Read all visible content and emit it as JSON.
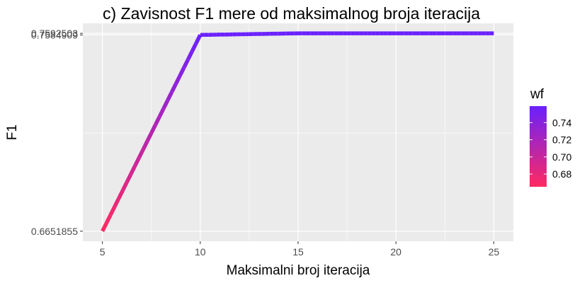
{
  "chart_data": {
    "type": "line",
    "title": "c) Zavisnost F1 mere od maksimalnog broja iteracija",
    "xlabel": "Maksimalni broj iteracija",
    "ylabel": "F1",
    "x": [
      5,
      10,
      15,
      20,
      25
    ],
    "y": [
      0.6651855,
      0.7584909,
      0.7592503,
      0.7592503,
      0.7592503
    ],
    "color_value": [
      0.6651855,
      0.7584909,
      0.7592503,
      0.7592503,
      0.7592503
    ],
    "xlim": [
      4.0,
      26.0
    ],
    "ylim": [
      0.6604,
      0.764
    ],
    "x_ticks": [
      5,
      10,
      15,
      20,
      25
    ],
    "x_tick_labels": [
      "5",
      "10",
      "15",
      "20",
      "25"
    ],
    "y_ticks": [
      0.6651855,
      0.7584909,
      0.7592503
    ],
    "y_tick_labels": [
      "0.6651855",
      "0.7584909",
      "0.7592503"
    ],
    "grid": true,
    "legend": {
      "title": "wf",
      "position": "right",
      "range": [
        0.6651855,
        0.7592503
      ],
      "ticks": [
        0.68,
        0.7,
        0.72,
        0.74
      ],
      "tick_labels": [
        "0.68",
        "0.70",
        "0.72",
        "0.74"
      ],
      "low_color": "#ff2a61",
      "high_color": "#6a20ff"
    },
    "panel_background": "#ebebeb",
    "grid_color": "#ffffff"
  }
}
